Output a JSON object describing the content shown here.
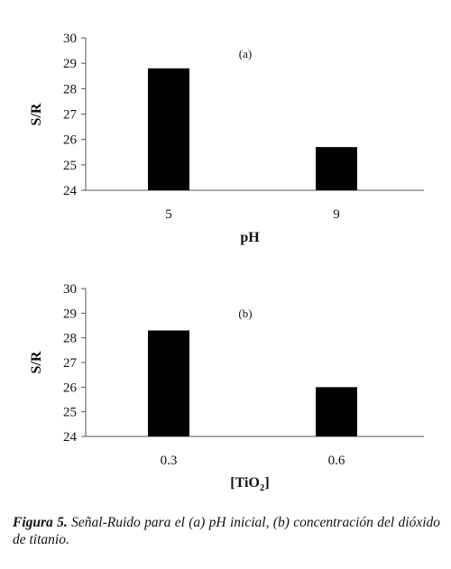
{
  "chart_data": [
    {
      "type": "bar",
      "panel_label": "(a)",
      "categories": [
        "5",
        "9"
      ],
      "values": [
        28.8,
        25.7
      ],
      "xlabel": "pH",
      "ylabel": "S/R",
      "ylim": [
        24,
        30
      ],
      "yticks": [
        "24",
        "25",
        "26",
        "27",
        "28",
        "29",
        "30"
      ],
      "grid": false,
      "bar_color": "#000000"
    },
    {
      "type": "bar",
      "panel_label": "(b)",
      "categories": [
        "0.3",
        "0.6"
      ],
      "values": [
        28.3,
        26.0
      ],
      "xlabel_prefix": "[TiO",
      "xlabel_sub": "2",
      "xlabel_suffix": "]",
      "ylabel": "S/R",
      "ylim": [
        24,
        30
      ],
      "yticks": [
        "24",
        "25",
        "26",
        "27",
        "28",
        "29",
        "30"
      ],
      "grid": false,
      "bar_color": "#000000"
    }
  ],
  "caption": {
    "label": "Figura 5.",
    "text": "Señal-Ruido para el (a) pH inicial, (b) concentración del dióxido de titanio."
  }
}
